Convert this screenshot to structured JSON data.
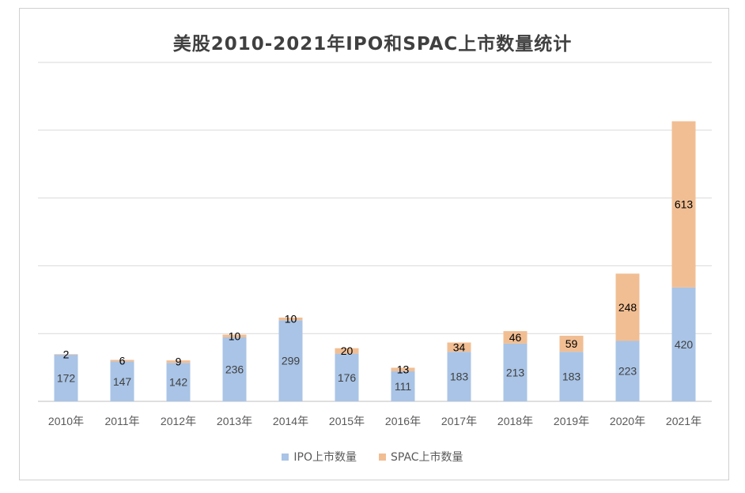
{
  "chart_data": {
    "type": "bar",
    "stacked": true,
    "title": "美股2010-2021年IPO和SPAC上市数量统计",
    "categories": [
      "2010年",
      "2011年",
      "2012年",
      "2013年",
      "2014年",
      "2015年",
      "2016年",
      "2017年",
      "2018年",
      "2019年",
      "2020年",
      "2021年"
    ],
    "series": [
      {
        "name": "IPO上市数量",
        "color": "#a9c4e6",
        "values": [
          172,
          147,
          142,
          236,
          299,
          176,
          111,
          183,
          213,
          183,
          223,
          420
        ]
      },
      {
        "name": "SPAC上市数量",
        "color": "#f1be93",
        "values": [
          2,
          6,
          9,
          10,
          10,
          20,
          13,
          34,
          46,
          59,
          248,
          613
        ]
      }
    ],
    "ylim": [
      0,
      1250
    ],
    "grid": true,
    "legend_position": "bottom"
  }
}
